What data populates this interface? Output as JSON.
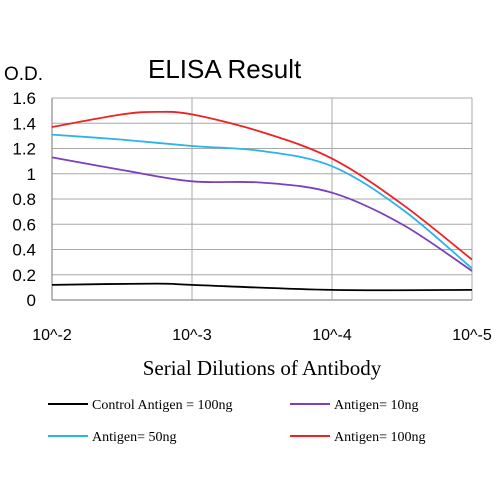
{
  "chart_data": {
    "type": "line",
    "title": "ELISA Result",
    "ylabel": "O.D.",
    "xlabel": "Serial Dilutions of Antibody",
    "x_ticks": [
      "10^-2",
      "10^-3",
      "10^-4",
      "10^-5"
    ],
    "x_positions": [
      0,
      1,
      2,
      3
    ],
    "x_scale": "log",
    "y_ticks": [
      "0",
      "0.2",
      "0.4",
      "0.6",
      "0.8",
      "1",
      "1.2",
      "1.4",
      "1.6"
    ],
    "ylim": [
      0,
      1.6
    ],
    "grid": true,
    "legend_position": "bottom",
    "series": [
      {
        "name": "Control Antigen = 100ng",
        "color": "#000000",
        "x": [
          0,
          0.75,
          1.0,
          2.0,
          3.0
        ],
        "y": [
          0.12,
          0.13,
          0.12,
          0.08,
          0.08
        ]
      },
      {
        "name": "Antigen= 10ng",
        "color": "#7b3fbf",
        "x": [
          0,
          0.5,
          1.0,
          1.5,
          2.0,
          2.5,
          3.0
        ],
        "y": [
          1.13,
          1.03,
          0.94,
          0.93,
          0.85,
          0.6,
          0.23
        ]
      },
      {
        "name": "Antigen= 50ng",
        "color": "#2bb3ea",
        "x": [
          0,
          0.5,
          1.0,
          1.5,
          2.0,
          2.5,
          3.0
        ],
        "y": [
          1.31,
          1.27,
          1.22,
          1.18,
          1.06,
          0.72,
          0.25
        ]
      },
      {
        "name": "Antigen= 100ng",
        "color": "#ee2222",
        "x": [
          0,
          0.5,
          0.75,
          1.0,
          1.5,
          2.0,
          2.5,
          3.0
        ],
        "y": [
          1.37,
          1.47,
          1.49,
          1.47,
          1.33,
          1.12,
          0.76,
          0.32
        ]
      }
    ]
  }
}
